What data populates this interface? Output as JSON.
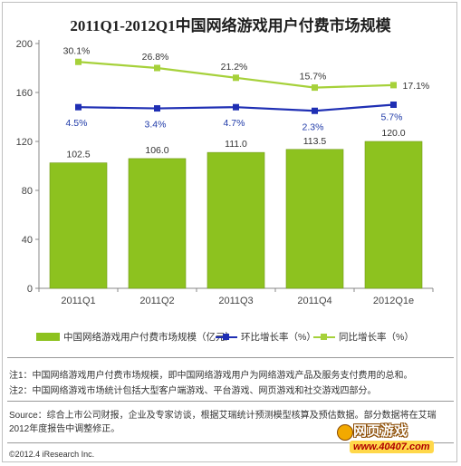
{
  "chart_data": {
    "type": "bar",
    "title": "2011Q1-2012Q1中国网络游戏用户付费市场规模",
    "categories": [
      "2011Q1",
      "2011Q2",
      "2011Q3",
      "2011Q4",
      "2012Q1e"
    ],
    "yticks": [
      "0",
      "40",
      "80",
      "120",
      "160",
      "200"
    ],
    "ylim": [
      0,
      200
    ],
    "grid": false,
    "bar_labels": [
      "102.5",
      "106.0",
      "111.0",
      "113.5",
      "120.0"
    ],
    "series": [
      {
        "name": "中国网络游戏用户付费市场规模（亿元）",
        "kind": "bar",
        "values": [
          102.5,
          106.0,
          111.0,
          113.5,
          120.0
        ]
      },
      {
        "name": "环比增长率（%）",
        "kind": "line",
        "values": [
          148,
          147,
          148,
          145,
          150
        ],
        "labels": [
          "4.5%",
          "3.4%",
          "4.7%",
          "2.3%",
          "5.7%"
        ]
      },
      {
        "name": "同比增长率（%）",
        "kind": "line",
        "values": [
          185,
          180,
          172,
          164,
          166
        ],
        "labels": [
          "30.1%",
          "26.8%",
          "21.2%",
          "15.7%",
          "17.1%"
        ]
      }
    ],
    "colors": {
      "bar": "#8dc21f",
      "blue_line": "#1f2fb4",
      "green_line": "#a6d13a"
    },
    "legend_position": "bottom"
  },
  "notes": {
    "note1": "注1：中国网络游戏用户付费市场规模，即中国网络游戏用户为网络游戏产品及服务支付费用的总和。",
    "note2": "注2：中国网络游戏市场统计包括大型客户端游戏、平台游戏、网页游戏和社交游戏四部分。",
    "source": "Source：综合上市公司财报，企业及专家访谈，根据艾瑞统计预测模型核算及预估数据。部分数据将在艾瑞2012年度报告中调整修正。",
    "copyright": "©2012.4 iResearch Inc."
  },
  "watermark": {
    "title": "网页游戏",
    "url": "www.40407.com"
  }
}
